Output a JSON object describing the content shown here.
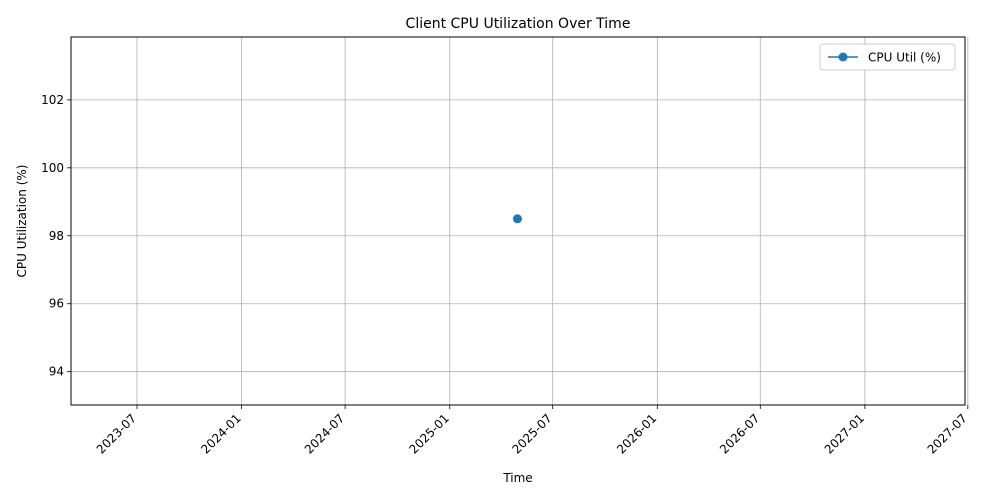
{
  "chart_data": {
    "type": "line",
    "title": "Client CPU Utilization Over Time",
    "xlabel": "Time",
    "ylabel": "CPU Utilization (%)",
    "x_ticks": [
      "2023-07",
      "2024-01",
      "2024-07",
      "2025-01",
      "2025-07",
      "2026-01",
      "2026-07",
      "2027-01",
      "2027-07"
    ],
    "y_ticks": [
      94,
      96,
      98,
      100,
      102
    ],
    "xlim": [
      "2023-03-07",
      "2027-06-26"
    ],
    "ylim": [
      93.02,
      103.85
    ],
    "grid": true,
    "legend_position": "top-right",
    "series": [
      {
        "name": "CPU Util (%)",
        "color": "#1f77b4",
        "marker": "circle",
        "points": [
          {
            "x": "2025-04-30",
            "y": 98.5
          }
        ]
      }
    ]
  }
}
